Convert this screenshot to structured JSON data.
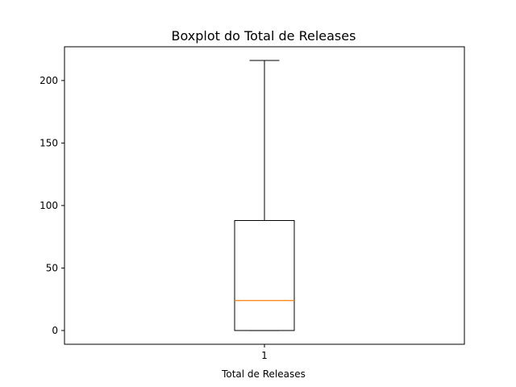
{
  "chart_data": {
    "type": "boxplot",
    "title": "Boxplot do Total de Releases",
    "xlabel": "Total de Releases",
    "ylabel": "",
    "categories": [
      "1"
    ],
    "boxes": [
      {
        "whisker_low": 0,
        "q1": 0,
        "median": 24,
        "q3": 88,
        "whisker_high": 216
      }
    ],
    "ylim": [
      -11,
      227
    ],
    "yticks": [
      0,
      50,
      100,
      150,
      200
    ],
    "grid": false,
    "colors": {
      "box": "#000000",
      "median": "#ff7f0e",
      "axes": "#000000"
    }
  }
}
